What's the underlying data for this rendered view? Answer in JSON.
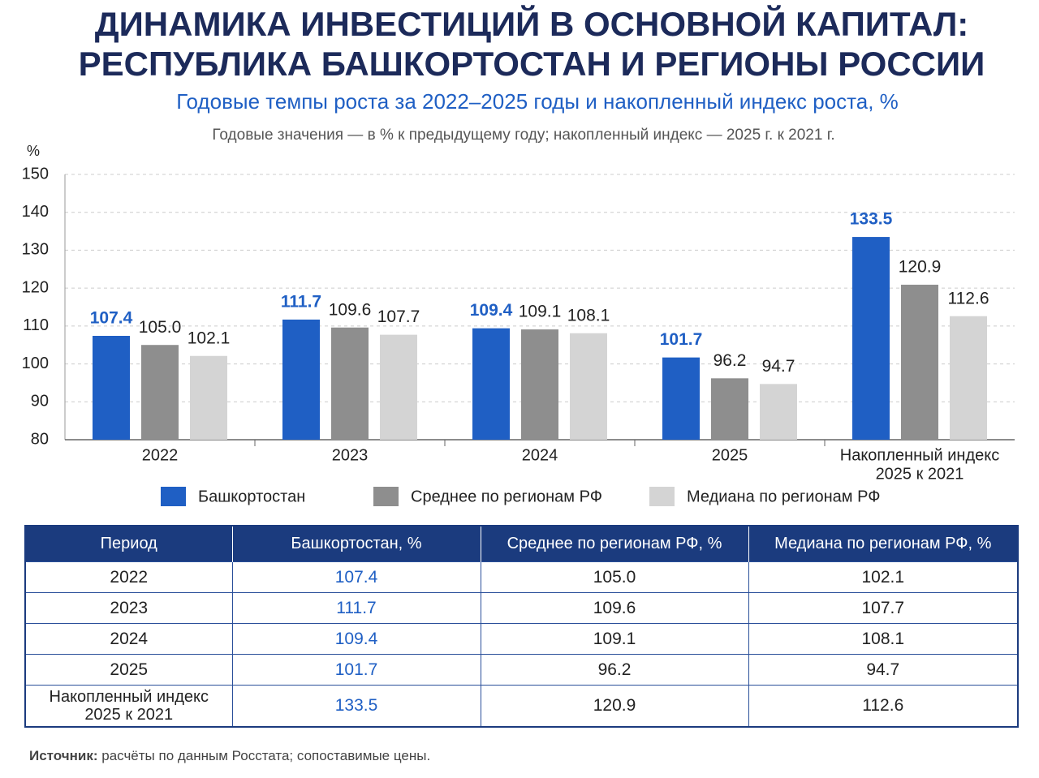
{
  "chart_data": {
    "type": "bar",
    "title": [
      "ДИНАМИКА ИНВЕСТИЦИЙ В ОСНОВНОЙ КАПИТАЛ:",
      "РЕСПУБЛИКА БАШКОРТОСТАН И РЕГИОНЫ РОССИИ"
    ],
    "subtitle": "Годовые темпы роста за 2022–2025 годы и накопленный индекс роста, %",
    "note": "Годовые значения — в % к предыдущему году; накопленный индекс — 2025 г. к 2021 г.",
    "y_label": "%",
    "categories": [
      "2022",
      "2023",
      "2024",
      "2025",
      [
        "Накопленный индекс",
        "2025 к 2021"
      ]
    ],
    "series": [
      {
        "name": "Башкортостан",
        "color": "#1f5fc4",
        "values": [
          107.4,
          111.7,
          109.4,
          101.7,
          133.5
        ],
        "value_labels": [
          "107.4",
          "111.7",
          "109.4",
          "101.7",
          "133.5"
        ]
      },
      {
        "name": "Среднее по регионам РФ",
        "color": "#8e8e8e",
        "values": [
          105.0,
          109.6,
          109.1,
          96.2,
          120.9
        ],
        "value_labels": [
          "105.0",
          "109.6",
          "109.1",
          "96.2",
          "120.9"
        ]
      },
      {
        "name": "Медиана по регионам РФ",
        "color": "#d4d4d4",
        "values": [
          102.1,
          107.7,
          108.1,
          94.7,
          112.6
        ],
        "value_labels": [
          "102.1",
          "107.7",
          "108.1",
          "94.7",
          "112.6"
        ]
      }
    ],
    "ylim": [
      80,
      150
    ],
    "yticks": [
      80,
      90,
      100,
      110,
      120,
      130,
      140,
      150
    ],
    "grid": true
  },
  "table": {
    "header": [
      "Период",
      "Башкортостан, %",
      "Среднее по регионам РФ, %",
      "Медиана по регионам РФ, %"
    ],
    "rows": [
      [
        "2022",
        "107.4",
        "105.0",
        "102.1"
      ],
      [
        "2023",
        "111.7",
        "109.6",
        "107.7"
      ],
      [
        "2024",
        "109.4",
        "109.1",
        "108.1"
      ],
      [
        "2025",
        "101.7",
        "96.2",
        "94.7"
      ],
      [
        [
          "Накопленный индекс",
          "2025 к 2021"
        ],
        "133.5",
        "120.9",
        "112.6"
      ]
    ]
  },
  "source": {
    "label": "Источник:",
    "text": "расчёты по данным Росстата; сопоставимые цены."
  }
}
